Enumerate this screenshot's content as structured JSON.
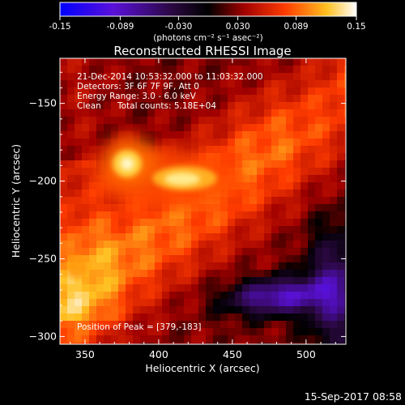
{
  "chart_data": {
    "type": "heatmap",
    "title": "Reconstructed RHESSI Image",
    "xlabel": "Heliocentric X (arcsec)",
    "ylabel": "Heliocentric Y (arcsec)",
    "xlim": [
      333,
      527
    ],
    "ylim": [
      -305,
      -121
    ],
    "xticks": [
      350,
      400,
      450,
      500
    ],
    "yticks": [
      -150,
      -200,
      -250,
      -300
    ],
    "colorbar": {
      "unit_label": "(photons cm⁻² s⁻¹ asec⁻²)",
      "range": [
        -0.15,
        0.15
      ],
      "ticks": [
        "-0.15",
        "-0.089",
        "-0.030",
        "0.030",
        "0.089",
        "0.15"
      ],
      "colormap": "blue-purple-black-red-orange-yellow-white"
    },
    "annotations": {
      "time_range": "21-Dec-2014 10:53:32.000 to 11:03:32.000",
      "detectors": "Detectors: 3F 6F 7F 9F, Att 0",
      "energy_range": "Energy Range: 3.0 - 6.0 keV",
      "method": "Clean",
      "total_counts": "Total counts: 5.18E+04",
      "peak": "Position of Peak = [379,-183]"
    },
    "sources": [
      {
        "x": 379,
        "y": -183,
        "peak": 0.15
      },
      {
        "x": 417,
        "y": -193,
        "peak": 0.12
      }
    ]
  },
  "footer": {
    "timestamp": "15-Sep-2017 08:58"
  }
}
